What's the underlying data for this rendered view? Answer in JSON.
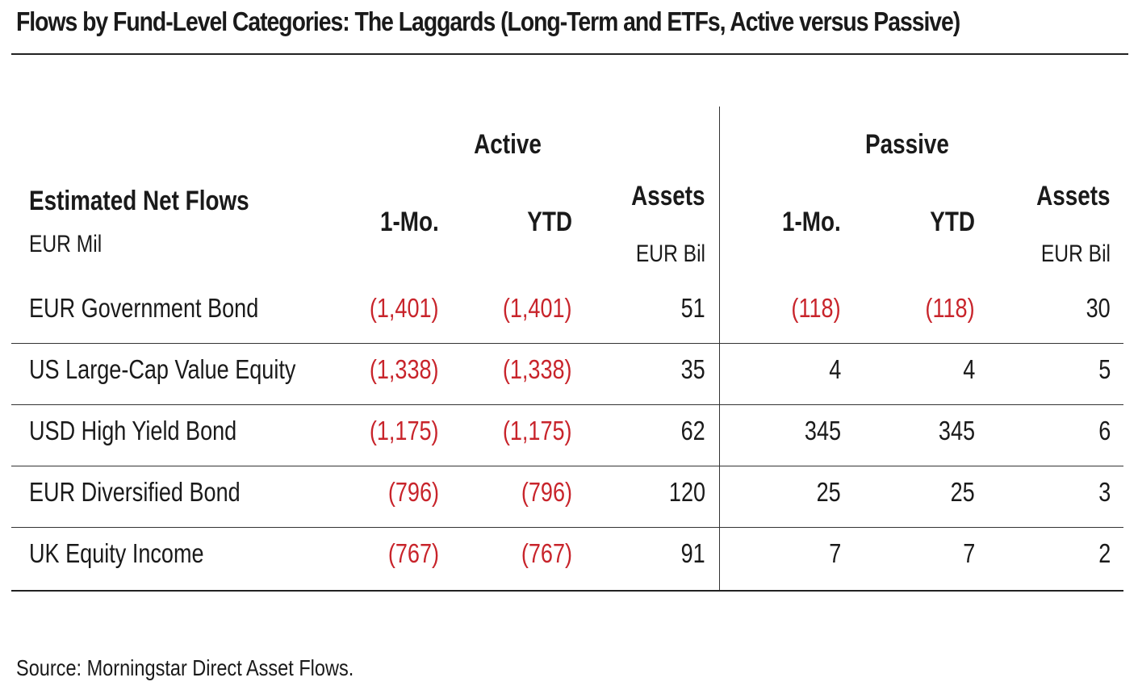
{
  "title": "Flows by Fund-Level Categories: The Laggards (Long-Term and ETFs, Active versus Passive)",
  "source": "Source: Morningstar Direct Asset Flows.",
  "colors": {
    "negative": "#c8242b",
    "text": "#1a1a1a",
    "rule": "#222222"
  },
  "chart_data": {
    "type": "table",
    "title": "Flows by Fund-Level Categories: The Laggards (Long-Term and ETFs, Active versus Passive)",
    "row_header": "Estimated Net Flows",
    "row_header_unit": "EUR Mil",
    "groups": [
      "Active",
      "Passive"
    ],
    "columns": [
      {
        "label": "1-Mo.",
        "unit": ""
      },
      {
        "label": "YTD",
        "unit": ""
      },
      {
        "label": "Assets",
        "unit": "EUR Bil"
      },
      {
        "label": "1-Mo.",
        "unit": ""
      },
      {
        "label": "YTD",
        "unit": ""
      },
      {
        "label": "Assets",
        "unit": "EUR Bil"
      }
    ],
    "rows": [
      {
        "label": "EUR Government Bond",
        "values": [
          -1401,
          -1401,
          51,
          -118,
          -118,
          30
        ],
        "display": [
          "(1,401)",
          "(1,401)",
          "51",
          "(118)",
          "(118)",
          "30"
        ]
      },
      {
        "label": "US Large-Cap Value Equity",
        "values": [
          -1338,
          -1338,
          35,
          4,
          4,
          5
        ],
        "display": [
          "(1,338)",
          "(1,338)",
          "35",
          "4",
          "4",
          "5"
        ]
      },
      {
        "label": "USD High Yield Bond",
        "values": [
          -1175,
          -1175,
          62,
          345,
          345,
          6
        ],
        "display": [
          "(1,175)",
          "(1,175)",
          "62",
          "345",
          "345",
          "6"
        ]
      },
      {
        "label": "EUR Diversified Bond",
        "values": [
          -796,
          -796,
          120,
          25,
          25,
          3
        ],
        "display": [
          "(796)",
          "(796)",
          "120",
          "25",
          "25",
          "3"
        ]
      },
      {
        "label": "UK Equity Income",
        "values": [
          -767,
          -767,
          91,
          7,
          7,
          2
        ],
        "display": [
          "(767)",
          "(767)",
          "91",
          "7",
          "7",
          "2"
        ]
      }
    ]
  }
}
